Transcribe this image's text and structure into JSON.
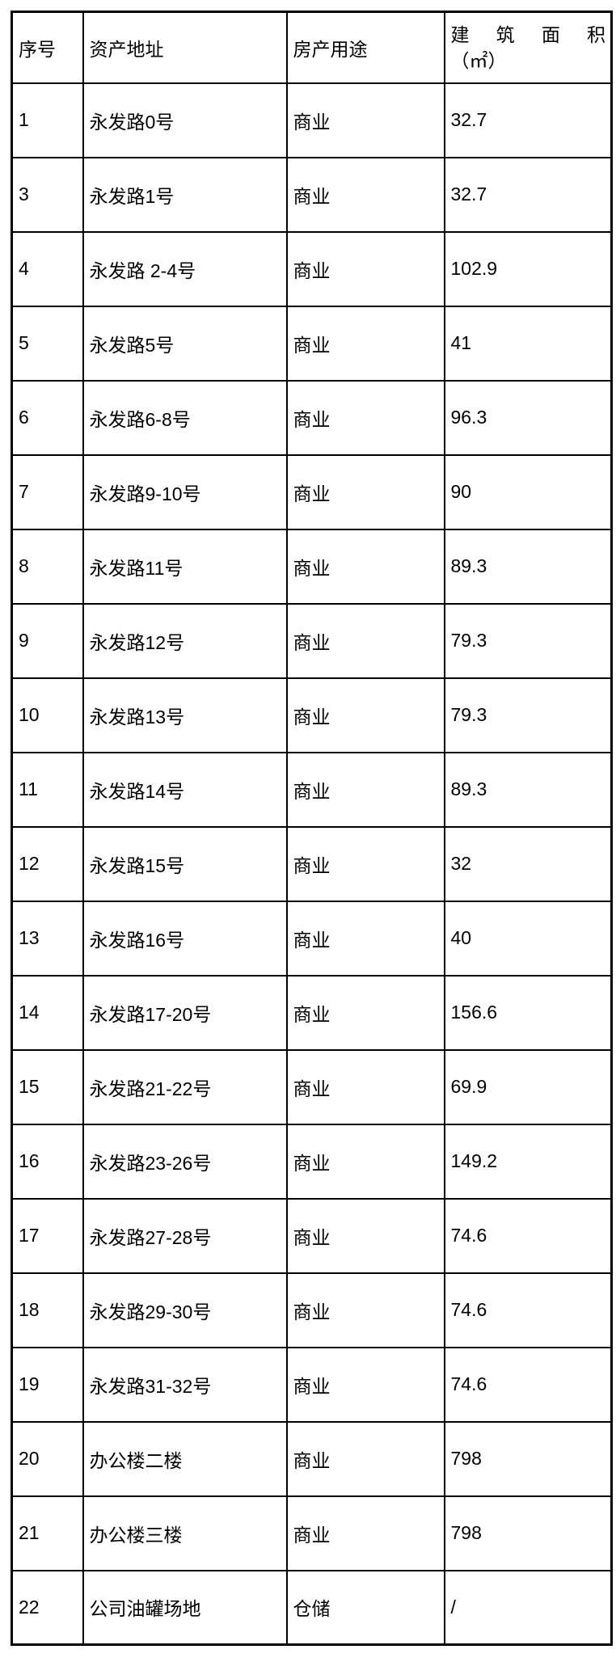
{
  "table": {
    "headers": {
      "no": "序号",
      "address": "资产地址",
      "use": "房产用途",
      "area_line1": "建 筑 面 积",
      "area_line2": "（㎡）"
    },
    "rows": [
      {
        "no": "1",
        "address": "永发路0号",
        "use": "商业",
        "area": "32.7"
      },
      {
        "no": "3",
        "address": "永发路1号",
        "use": "商业",
        "area": "32.7"
      },
      {
        "no": "4",
        "address": "永发路 2-4号",
        "use": "商业",
        "area": "102.9"
      },
      {
        "no": "5",
        "address": "永发路5号",
        "use": "商业",
        "area": "41"
      },
      {
        "no": "6",
        "address": "永发路6-8号",
        "use": "商业",
        "area": "96.3"
      },
      {
        "no": "7",
        "address": "永发路9-10号",
        "use": "商业",
        "area": "90"
      },
      {
        "no": "8",
        "address": "永发路11号",
        "use": "商业",
        "area": "89.3"
      },
      {
        "no": "9",
        "address": "永发路12号",
        "use": "商业",
        "area": "79.3"
      },
      {
        "no": "10",
        "address": "永发路13号",
        "use": "商业",
        "area": "79.3"
      },
      {
        "no": "11",
        "address": "永发路14号",
        "use": "商业",
        "area": "89.3"
      },
      {
        "no": "12",
        "address": "永发路15号",
        "use": "商业",
        "area": "32"
      },
      {
        "no": "13",
        "address": "永发路16号",
        "use": "商业",
        "area": "40"
      },
      {
        "no": "14",
        "address": "永发路17-20号",
        "use": "商业",
        "area": "156.6"
      },
      {
        "no": "15",
        "address": "永发路21-22号",
        "use": "商业",
        "area": "69.9"
      },
      {
        "no": "16",
        "address": "永发路23-26号",
        "use": "商业",
        "area": "149.2"
      },
      {
        "no": "17",
        "address": "永发路27-28号",
        "use": "商业",
        "area": "74.6"
      },
      {
        "no": "18",
        "address": "永发路29-30号",
        "use": "商业",
        "area": "74.6"
      },
      {
        "no": "19",
        "address": "永发路31-32号",
        "use": "商业",
        "area": "74.6"
      },
      {
        "no": "20",
        "address": "办公楼二楼",
        "use": "商业",
        "area": "798"
      },
      {
        "no": "21",
        "address": "办公楼三楼",
        "use": "商业",
        "area": "798"
      },
      {
        "no": "22",
        "address": "公司油罐场地",
        "use": "仓储",
        "area": "/"
      }
    ],
    "colors": {
      "border": "#000000",
      "text": "#000000",
      "background": "#ffffff"
    }
  }
}
